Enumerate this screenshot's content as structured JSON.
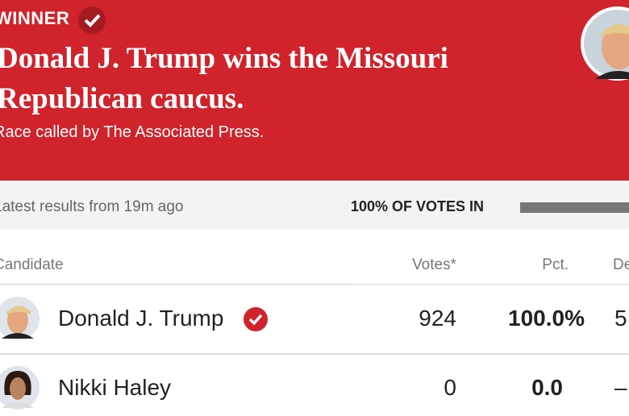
{
  "header": {
    "status": "WINNER",
    "title": "Donald J. Trump wins the Missouri Republican caucus.",
    "subtitle": "Race called by The Associated Press."
  },
  "status_bar": {
    "updated": "Latest results from 19m ago",
    "reporting": "100% OF VOTES IN"
  },
  "table": {
    "columns": [
      "Candidate",
      "Votes*",
      "Pct.",
      "De"
    ],
    "rows": [
      [
        "Donald J. Trump",
        "924",
        "100.0%",
        "5"
      ],
      [
        "Nikki Haley",
        "0",
        "0.0",
        "–"
      ]
    ]
  }
}
